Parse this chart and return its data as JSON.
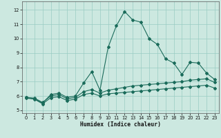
{
  "xlabel": "Humidex (Indice chaleur)",
  "bg_color": "#cce8e0",
  "grid_color": "#99ccc2",
  "line_color": "#1a6b5a",
  "xlim": [
    -0.5,
    23.5
  ],
  "ylim": [
    4.8,
    12.6
  ],
  "xticks": [
    0,
    1,
    2,
    3,
    4,
    5,
    6,
    7,
    8,
    9,
    10,
    11,
    12,
    13,
    14,
    15,
    16,
    17,
    18,
    19,
    20,
    21,
    22,
    23
  ],
  "yticks": [
    5,
    6,
    7,
    8,
    9,
    10,
    11,
    12
  ],
  "line1_x": [
    0,
    1,
    2,
    3,
    4,
    5,
    6,
    7,
    8,
    9,
    10,
    11,
    12,
    13,
    14,
    15,
    16,
    17,
    18,
    19,
    20,
    21,
    22,
    23
  ],
  "line1_y": [
    5.9,
    5.8,
    5.5,
    6.1,
    6.2,
    5.9,
    6.0,
    6.9,
    7.7,
    6.4,
    9.4,
    10.9,
    11.9,
    11.3,
    11.15,
    10.0,
    9.6,
    8.6,
    8.3,
    7.5,
    8.35,
    8.3,
    7.6,
    7.15
  ],
  "line2_x": [
    0,
    1,
    2,
    3,
    4,
    5,
    6,
    7,
    8,
    9,
    10,
    11,
    12,
    13,
    14,
    15,
    16,
    17,
    18,
    19,
    20,
    21,
    22,
    23
  ],
  "line2_y": [
    5.9,
    5.85,
    5.55,
    6.0,
    6.1,
    5.8,
    5.9,
    6.3,
    6.45,
    6.2,
    6.4,
    6.5,
    6.6,
    6.7,
    6.75,
    6.8,
    6.85,
    6.9,
    6.95,
    7.0,
    7.1,
    7.15,
    7.2,
    6.95
  ],
  "line3_x": [
    0,
    1,
    2,
    3,
    4,
    5,
    6,
    7,
    8,
    9,
    10,
    11,
    12,
    13,
    14,
    15,
    16,
    17,
    18,
    19,
    20,
    21,
    22,
    23
  ],
  "line3_y": [
    5.85,
    5.78,
    5.45,
    5.88,
    5.95,
    5.68,
    5.78,
    6.1,
    6.2,
    6.0,
    6.15,
    6.2,
    6.25,
    6.3,
    6.35,
    6.4,
    6.45,
    6.5,
    6.55,
    6.6,
    6.65,
    6.7,
    6.75,
    6.55
  ]
}
